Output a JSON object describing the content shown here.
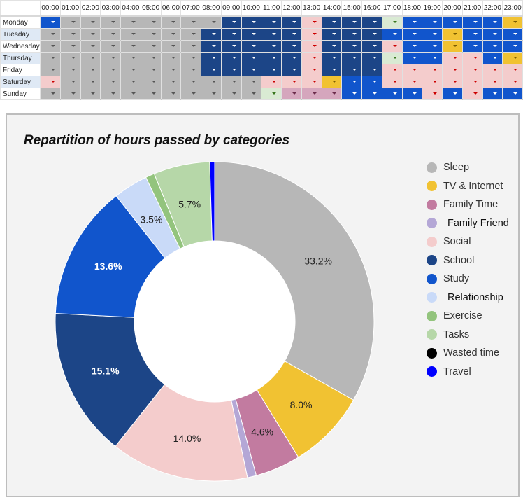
{
  "schedule": {
    "hours": [
      "00:00",
      "01:00",
      "02:00",
      "03:00",
      "04:00",
      "05:00",
      "06:00",
      "07:00",
      "08:00",
      "09:00",
      "10:00",
      "11:00",
      "12:00",
      "13:00",
      "14:00",
      "15:00",
      "16:00",
      "17:00",
      "18:00",
      "19:00",
      "20:00",
      "21:00",
      "22:00",
      "23:00"
    ],
    "category_colors": {
      "Sleep": "#b7b7b7",
      "TV & Internet": "#f1c232",
      "Family Time": "#d5a6bd",
      "Social": "#f4cccc",
      "School": "#1c4587",
      "Study": "#1155cc",
      "Tasks": "#d9ead3"
    },
    "arrow_colors": {
      "Sleep": "#555555",
      "TV & Internet": "#7a5c00",
      "Family Time": "#6b2b4b",
      "Social": "#cc0000",
      "School": "#ffffff",
      "Study": "#ffffff",
      "Tasks": "#38761d"
    },
    "rows": [
      {
        "day": "Monday",
        "cells": [
          "Study",
          "Sleep",
          "Sleep",
          "Sleep",
          "Sleep",
          "Sleep",
          "Sleep",
          "Sleep",
          "Sleep",
          "School",
          "School",
          "School",
          "School",
          "Social",
          "School",
          "School",
          "School",
          "Tasks",
          "Study",
          "Study",
          "Study",
          "Study",
          "Study",
          "TV & Internet"
        ]
      },
      {
        "day": "Tuesday",
        "cells": [
          "Sleep",
          "Sleep",
          "Sleep",
          "Sleep",
          "Sleep",
          "Sleep",
          "Sleep",
          "Sleep",
          "School",
          "School",
          "School",
          "School",
          "School",
          "Social",
          "School",
          "School",
          "School",
          "Study",
          "Study",
          "Study",
          "TV & Internet",
          "Study",
          "Study",
          "Study"
        ]
      },
      {
        "day": "Wednesday",
        "cells": [
          "Sleep",
          "Sleep",
          "Sleep",
          "Sleep",
          "Sleep",
          "Sleep",
          "Sleep",
          "Sleep",
          "School",
          "School",
          "School",
          "School",
          "School",
          "Social",
          "School",
          "School",
          "School",
          "Social",
          "Study",
          "Study",
          "TV & Internet",
          "Study",
          "Study",
          "Study"
        ]
      },
      {
        "day": "Thursday",
        "cells": [
          "Sleep",
          "Sleep",
          "Sleep",
          "Sleep",
          "Sleep",
          "Sleep",
          "Sleep",
          "Sleep",
          "School",
          "School",
          "School",
          "School",
          "School",
          "Social",
          "School",
          "School",
          "School",
          "Tasks",
          "Study",
          "Study",
          "Social",
          "Social",
          "Study",
          "TV & Internet"
        ]
      },
      {
        "day": "Friday",
        "cells": [
          "Sleep",
          "Sleep",
          "Sleep",
          "Sleep",
          "Sleep",
          "Sleep",
          "Sleep",
          "Sleep",
          "School",
          "School",
          "School",
          "School",
          "School",
          "Social",
          "School",
          "School",
          "School",
          "Social",
          "Social",
          "Social",
          "Social",
          "Social",
          "Social",
          "Social"
        ]
      },
      {
        "day": "Saturday",
        "cells": [
          "Social",
          "Sleep",
          "Sleep",
          "Sleep",
          "Sleep",
          "Sleep",
          "Sleep",
          "Sleep",
          "Sleep",
          "Sleep",
          "Sleep",
          "Social",
          "Social",
          "Social",
          "TV & Internet",
          "Study",
          "Study",
          "Social",
          "Social",
          "Social",
          "Social",
          "Social",
          "Social",
          "Social"
        ]
      },
      {
        "day": "Sunday",
        "cells": [
          "Sleep",
          "Sleep",
          "Sleep",
          "Sleep",
          "Sleep",
          "Sleep",
          "Sleep",
          "Sleep",
          "Sleep",
          "Sleep",
          "Sleep",
          "Tasks",
          "Family Time",
          "Family Time",
          "Family Time",
          "Study",
          "Study",
          "Study",
          "Study",
          "Social",
          "Study",
          "Social",
          "Study",
          "Study"
        ]
      }
    ]
  },
  "chart_data": {
    "type": "pie",
    "subtype": "donut",
    "title": "Repartition of hours passed by categories",
    "legend_position": "right",
    "categories": [
      "Sleep",
      "TV & Internet",
      "Family Time",
      "Family Friend",
      "Social",
      "School",
      "Study",
      "Relationship",
      "Exercise",
      "Tasks",
      "Wasted time",
      "Travel"
    ],
    "values": [
      33.2,
      8.0,
      4.6,
      0.9,
      14.0,
      15.1,
      13.6,
      3.5,
      0.9,
      5.7,
      0.0,
      0.5
    ],
    "data_labels": [
      "33.2%",
      "8.0%",
      "4.6%",
      "",
      "14.0%",
      "15.1%",
      "13.6%",
      "3.5%",
      "",
      "5.7%",
      "",
      ""
    ],
    "colors": [
      "#b7b7b7",
      "#f1c232",
      "#c27ba0",
      "#b4a7d6",
      "#f4cccc",
      "#1c4587",
      "#1155cc",
      "#c9daf8",
      "#93c47d",
      "#b6d7a8",
      "#000000",
      "#0000ff"
    ],
    "label_colors": [
      "#222222",
      "#222222",
      "#222222",
      "#222222",
      "#222222",
      "#ffffff",
      "#ffffff",
      "#222222",
      "#222222",
      "#222222",
      "#222222",
      "#222222"
    ]
  }
}
